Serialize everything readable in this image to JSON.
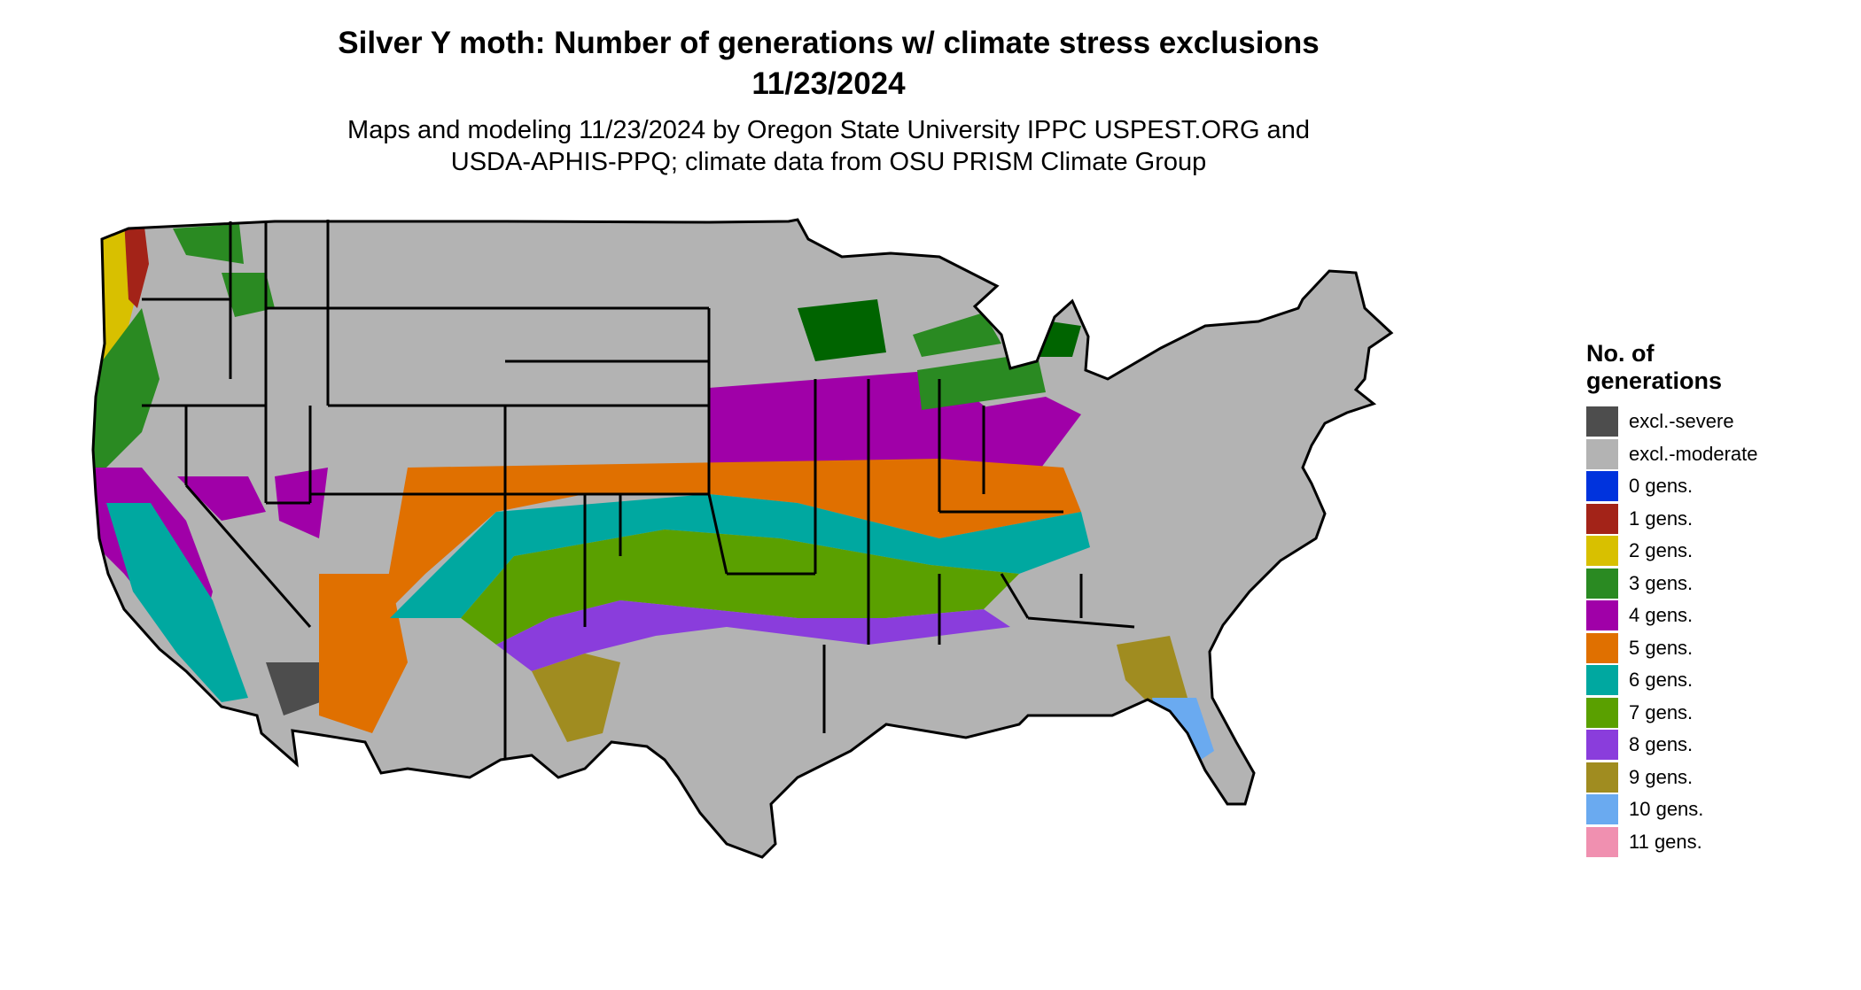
{
  "title_line1": "Silver Y moth: Number of generations w/ climate stress exclusions",
  "title_line2": "11/23/2024",
  "subtitle_line1": "Maps and modeling 11/23/2024 by Oregon State University IPPC USPEST.ORG and",
  "subtitle_line2": "USDA-APHIS-PPQ; climate data from OSU PRISM Climate Group",
  "legend": {
    "title_line1": "No. of",
    "title_line2": "generations",
    "items": [
      {
        "label": "excl.-severe",
        "color": "#4d4d4d"
      },
      {
        "label": "excl.-moderate",
        "color": "#b3b3b3"
      },
      {
        "label": "0 gens.",
        "color": "#0033dd"
      },
      {
        "label": "1 gens.",
        "color": "#a32318"
      },
      {
        "label": "2 gens.",
        "color": "#d8c000"
      },
      {
        "label": "3 gens.",
        "color": "#2a8a22"
      },
      {
        "label": "4 gens.",
        "color": "#a000a8"
      },
      {
        "label": "5 gens.",
        "color": "#e07000"
      },
      {
        "label": "6 gens.",
        "color": "#00a8a0"
      },
      {
        "label": "7 gens.",
        "color": "#5aa000"
      },
      {
        "label": "8 gens.",
        "color": "#8a3ddc"
      },
      {
        "label": "9 gens.",
        "color": "#a08c20"
      },
      {
        "label": "10 gens.",
        "color": "#6aaaf0"
      },
      {
        "label": "11 gens.",
        "color": "#f090b0"
      }
    ]
  }
}
